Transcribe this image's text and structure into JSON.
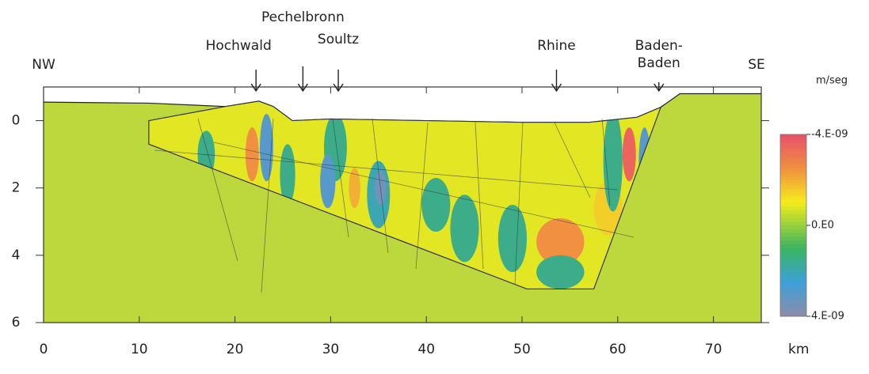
{
  "chart_data": {
    "type": "cross-section",
    "compass": {
      "left": "NW",
      "right": "SE"
    },
    "locations": [
      {
        "label": "Hochwald",
        "x": 22.2
      },
      {
        "label": "Pechelbronn",
        "x": 27.1
      },
      {
        "label": "Soultz",
        "x": 30.8
      },
      {
        "label": "Rhine",
        "x": 53.6
      },
      {
        "label": "Baden-\nBaden",
        "x": 64.3
      }
    ],
    "xlabel": "km",
    "xlim": [
      0,
      75
    ],
    "xticks": [
      0,
      10,
      20,
      30,
      40,
      50,
      60,
      70
    ],
    "ylim": [
      -1,
      6
    ],
    "y_reversed": true,
    "yticks": [
      0,
      2,
      4,
      6
    ],
    "background_color": "#bcd83c",
    "surface": [
      [
        0,
        -0.55
      ],
      [
        11,
        -0.52
      ],
      [
        19,
        -0.42
      ],
      [
        22.5,
        -0.58
      ],
      [
        24,
        -0.42
      ],
      [
        26,
        0
      ],
      [
        30,
        -0.05
      ],
      [
        40,
        0
      ],
      [
        50,
        0.05
      ],
      [
        57,
        0.05
      ],
      [
        62,
        -0.1
      ],
      [
        64.5,
        -0.4
      ],
      [
        66.5,
        -0.8
      ],
      [
        75,
        -0.8
      ]
    ],
    "basin": {
      "value": -8e-10,
      "outline": [
        [
          11,
          0
        ],
        [
          19,
          -0.42
        ],
        [
          22.5,
          -0.58
        ],
        [
          24,
          -0.42
        ],
        [
          26,
          0
        ],
        [
          30,
          -0.05
        ],
        [
          40,
          0
        ],
        [
          50,
          0.05
        ],
        [
          57,
          0.05
        ],
        [
          62,
          -0.1
        ],
        [
          64.5,
          -0.4
        ],
        [
          57.5,
          5
        ],
        [
          50.5,
          5
        ],
        [
          11,
          0.7
        ]
      ]
    },
    "anomalies": [
      {
        "x": 17,
        "y": 1.0,
        "w": 0.9,
        "h": 0.7,
        "value": 1.5e-09
      },
      {
        "x": 21.8,
        "y": 1.0,
        "w": 0.7,
        "h": 0.8,
        "value": -2.5e-09
      },
      {
        "x": 23.3,
        "y": 0.8,
        "w": 0.7,
        "h": 1.0,
        "value": 3e-09
      },
      {
        "x": 25.5,
        "y": 1.6,
        "w": 0.8,
        "h": 0.9,
        "value": 1.5e-09
      },
      {
        "x": 30.5,
        "y": 0.8,
        "w": 1.2,
        "h": 1.0,
        "value": 1.5e-09
      },
      {
        "x": 29.7,
        "y": 1.8,
        "w": 0.8,
        "h": 0.8,
        "value": 3e-09
      },
      {
        "x": 32.5,
        "y": 2.0,
        "w": 0.6,
        "h": 0.6,
        "value": -2e-09
      },
      {
        "x": 35,
        "y": 2.2,
        "w": 1.2,
        "h": 1.0,
        "value": 2e-09
      },
      {
        "x": 35.2,
        "y": 2.0,
        "w": 0.6,
        "h": 0.5,
        "value": 3.5e-09
      },
      {
        "x": 41,
        "y": 2.5,
        "w": 1.5,
        "h": 0.8,
        "value": 1.5e-09
      },
      {
        "x": 44,
        "y": 3.2,
        "w": 1.5,
        "h": 1.0,
        "value": 1.5e-09
      },
      {
        "x": 49,
        "y": 3.5,
        "w": 1.5,
        "h": 1.0,
        "value": 1.5e-09
      },
      {
        "x": 54,
        "y": 3.6,
        "w": 2.5,
        "h": 0.7,
        "value": -2.5e-09
      },
      {
        "x": 54,
        "y": 4.5,
        "w": 2.5,
        "h": 0.5,
        "value": 1.5e-09
      },
      {
        "x": 59,
        "y": 2.6,
        "w": 1.5,
        "h": 0.8,
        "value": -1.5e-09
      },
      {
        "x": 59.5,
        "y": 1.2,
        "w": 1.0,
        "h": 1.5,
        "value": 1.5e-09
      },
      {
        "x": 61.2,
        "y": 1.0,
        "w": 0.7,
        "h": 0.8,
        "value": -3.5e-09
      },
      {
        "x": 62.8,
        "y": 1.2,
        "w": 0.6,
        "h": 1.0,
        "value": 3e-09
      },
      {
        "x": 63.8,
        "y": 2.2,
        "w": 0.6,
        "h": 1.0,
        "value": 1.5e-09
      }
    ],
    "colorbar": {
      "label": "m/seg",
      "stops": [
        {
          "value": -4e-09,
          "color": "#e8506a"
        },
        {
          "value": -2.5e-09,
          "color": "#f09040"
        },
        {
          "value": -1e-09,
          "color": "#f4ec1c"
        },
        {
          "value": 1e-09,
          "color": "#3cb460"
        },
        {
          "value": 2.5e-09,
          "color": "#3ca0d8"
        },
        {
          "value": 4e-09,
          "color": "#8c8ca8"
        }
      ],
      "ticks": [
        {
          "value": -4e-09,
          "label": "-4.E-09"
        },
        {
          "value": 0,
          "label": "0.E0"
        },
        {
          "value": 4e-09,
          "label": "4.E-09"
        }
      ]
    }
  }
}
